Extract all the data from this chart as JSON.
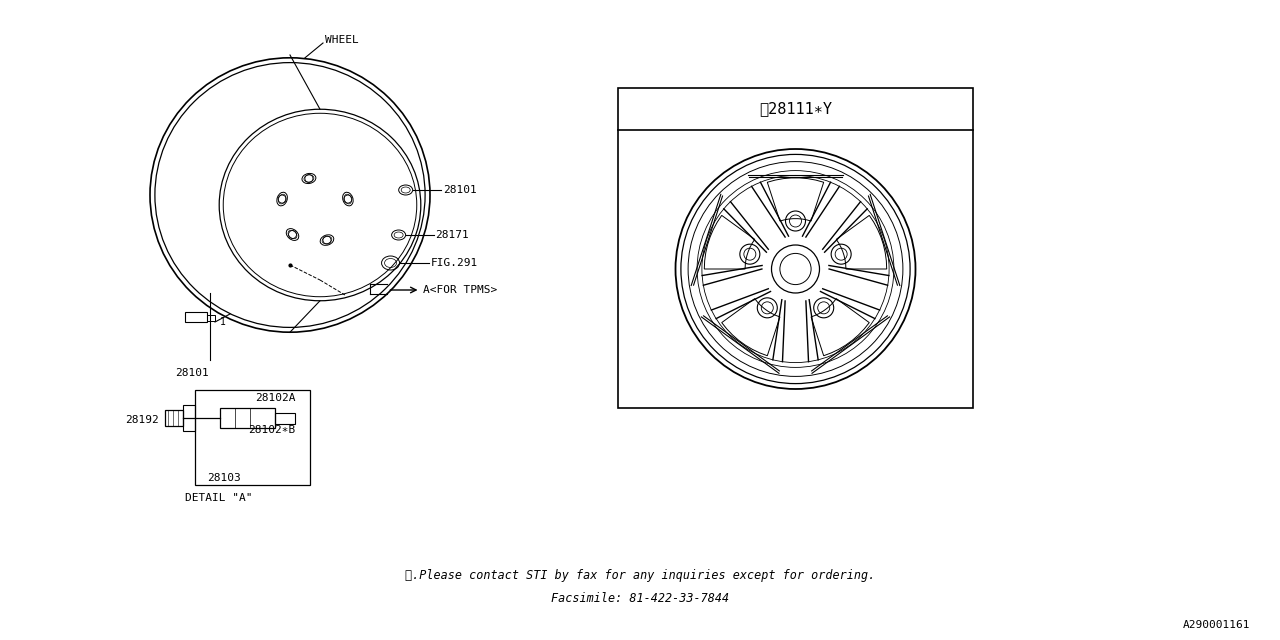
{
  "bg_color": "#ffffff",
  "line_color": "#000000",
  "footer_line1": "※.Please contact STI by fax for any inquiries except for ordering.",
  "footer_line2": "Facsimile: 81-422-33-7844",
  "doc_number": "A290001161",
  "part_label_28111": "※28111∗Y"
}
